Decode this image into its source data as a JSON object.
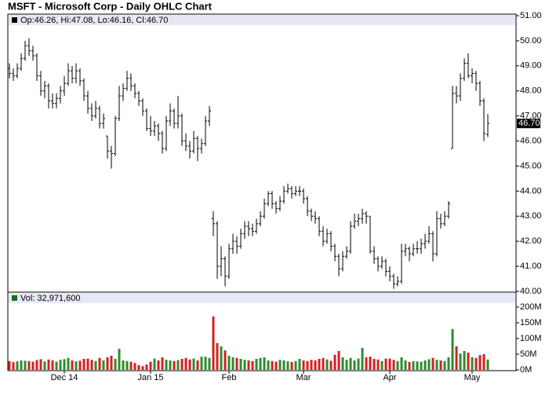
{
  "chart_data": [
    {
      "type": "ohlc",
      "title": "MSFT - Microsoft Corp - Daily OHLC Chart",
      "header": "Op:46.26, Hi:47.08, Lo:46.16, Cl:46.70",
      "color": "#000000",
      "open": [
        48.9,
        48.7,
        48.6,
        48.9,
        49.3,
        49.8,
        49.6,
        49.4,
        48.6,
        48.0,
        48.2,
        47.6,
        47.5,
        47.7,
        48.0,
        48.3,
        48.8,
        48.5,
        48.8,
        48.4,
        47.8,
        47.3,
        47.0,
        47.3,
        46.7,
        46.2,
        45.6,
        45.5,
        46.9,
        47.8,
        48.1,
        48.5,
        48.2,
        47.9,
        47.6,
        47.2,
        46.5,
        46.4,
        46.6,
        46.3,
        45.7,
        46.8,
        47.2,
        46.7,
        47.0,
        46.0,
        45.8,
        45.6,
        46.1,
        45.7,
        45.9,
        46.8,
        42.9,
        42.7,
        41.0,
        41.3,
        40.6,
        41.7,
        42.0,
        41.8,
        42.3,
        42.6,
        42.5,
        42.4,
        42.7,
        43.0,
        43.5,
        43.9,
        43.5,
        43.3,
        43.6,
        44.0,
        44.1,
        43.9,
        44.0,
        44.0,
        43.7,
        43.2,
        43.0,
        42.9,
        42.4,
        42.0,
        42.3,
        41.8,
        41.4,
        40.9,
        41.4,
        41.6,
        42.6,
        42.8,
        42.9,
        43.1,
        43.0,
        41.6,
        41.3,
        41.0,
        41.2,
        40.8,
        40.6,
        40.3,
        40.4,
        41.6,
        41.7,
        41.5,
        41.7,
        41.7,
        41.9,
        42.0,
        42.3,
        41.5,
        42.9,
        42.7,
        43.0,
        45.7,
        47.9,
        47.8,
        48.5,
        49.1,
        48.6,
        48.7,
        48.3,
        47.6,
        46.26
      ],
      "high": [
        49.1,
        48.9,
        49.1,
        49.5,
        50.0,
        50.1,
        49.8,
        49.5,
        48.8,
        48.4,
        48.3,
        47.9,
        47.9,
        48.2,
        48.6,
        49.1,
        49.0,
        49.1,
        48.9,
        48.5,
        48.0,
        47.5,
        47.6,
        47.4,
        47.1,
        46.2,
        45.8,
        47.0,
        48.2,
        48.3,
        48.8,
        48.7,
        48.3,
        48.0,
        47.7,
        47.3,
        47.0,
        46.8,
        46.7,
        46.4,
        47.0,
        47.5,
        47.3,
        47.8,
        47.1,
        46.3,
        46.0,
        46.4,
        46.2,
        46.1,
        47.0,
        47.4,
        43.2,
        42.8,
        41.8,
        41.4,
        41.9,
        42.3,
        42.2,
        42.5,
        42.8,
        42.8,
        42.7,
        42.9,
        43.2,
        43.7,
        44.0,
        44.0,
        43.6,
        43.8,
        44.2,
        44.3,
        44.2,
        44.2,
        44.2,
        44.1,
        43.8,
        43.3,
        43.2,
        43.0,
        42.6,
        42.5,
        42.4,
        41.9,
        41.5,
        41.6,
        41.8,
        42.8,
        43.1,
        43.1,
        43.3,
        43.2,
        43.0,
        41.8,
        41.4,
        41.4,
        41.3,
        41.0,
        40.7,
        40.6,
        41.9,
        41.9,
        41.8,
        41.9,
        42.0,
        42.1,
        42.3,
        42.6,
        42.4,
        43.2,
        43.1,
        43.2,
        43.6,
        48.2,
        48.2,
        48.7,
        49.3,
        49.5,
        48.9,
        48.8,
        48.4,
        47.7,
        47.08
      ],
      "low": [
        48.5,
        48.4,
        48.5,
        48.8,
        49.2,
        49.4,
        49.2,
        48.4,
        47.8,
        47.7,
        47.3,
        47.3,
        47.3,
        47.5,
        47.8,
        48.2,
        48.3,
        48.3,
        48.2,
        47.6,
        47.1,
        46.8,
        46.9,
        46.5,
        46.5,
        45.3,
        44.9,
        45.4,
        46.8,
        47.6,
        48.0,
        48.0,
        47.7,
        47.4,
        47.0,
        46.4,
        46.2,
        46.2,
        46.0,
        45.5,
        45.6,
        46.6,
        46.5,
        46.5,
        45.8,
        45.6,
        45.3,
        45.5,
        45.2,
        45.5,
        45.8,
        46.6,
        42.2,
        40.5,
        40.6,
        40.2,
        40.5,
        41.5,
        41.5,
        41.7,
        42.1,
        42.2,
        42.2,
        42.3,
        42.6,
        42.9,
        43.4,
        43.3,
        43.1,
        43.2,
        43.5,
        43.9,
        43.7,
        43.8,
        43.8,
        43.5,
        43.0,
        42.8,
        42.7,
        42.2,
        41.8,
        41.9,
        41.6,
        41.2,
        40.6,
        40.8,
        41.3,
        41.5,
        42.5,
        42.6,
        42.7,
        42.7,
        41.5,
        41.1,
        40.8,
        40.9,
        40.6,
        40.4,
        40.1,
        40.2,
        40.3,
        41.4,
        41.2,
        41.4,
        41.5,
        41.5,
        41.7,
        41.9,
        41.2,
        41.4,
        42.5,
        42.6,
        42.9,
        45.7,
        47.5,
        47.6,
        48.4,
        48.5,
        48.3,
        48.0,
        47.4,
        46.0,
        46.16
      ],
      "close": [
        48.7,
        48.6,
        48.9,
        49.3,
        49.8,
        49.6,
        49.4,
        48.6,
        48.0,
        48.2,
        47.6,
        47.5,
        47.7,
        48.0,
        48.3,
        48.8,
        48.5,
        48.8,
        48.4,
        47.8,
        47.3,
        47.0,
        47.3,
        46.7,
        46.9,
        45.6,
        45.5,
        46.9,
        47.8,
        48.1,
        48.5,
        48.2,
        47.9,
        47.6,
        47.2,
        46.5,
        46.4,
        46.6,
        46.3,
        45.7,
        46.8,
        47.2,
        46.7,
        47.0,
        46.0,
        45.8,
        45.6,
        46.1,
        45.7,
        45.9,
        46.8,
        47.2,
        42.7,
        41.0,
        41.3,
        40.6,
        41.7,
        42.0,
        41.8,
        42.3,
        42.6,
        42.5,
        42.4,
        42.7,
        43.0,
        43.5,
        43.9,
        43.5,
        43.3,
        43.6,
        44.0,
        44.1,
        43.9,
        44.0,
        44.0,
        43.7,
        43.2,
        43.0,
        42.9,
        42.4,
        42.0,
        42.3,
        41.8,
        41.4,
        40.9,
        41.4,
        41.6,
        42.6,
        42.8,
        42.9,
        43.1,
        43.0,
        41.6,
        41.3,
        41.0,
        41.2,
        40.8,
        40.6,
        40.3,
        40.4,
        41.6,
        41.7,
        41.5,
        41.7,
        41.7,
        41.9,
        42.0,
        42.3,
        41.5,
        42.9,
        42.7,
        43.0,
        43.5,
        47.9,
        47.8,
        48.5,
        49.1,
        48.6,
        48.7,
        48.3,
        47.6,
        46.3,
        46.7
      ],
      "ylim": [
        40,
        51
      ],
      "yticks": [
        {
          "value": 40,
          "label": "40.00"
        },
        {
          "value": 41,
          "label": "41.00"
        },
        {
          "value": 42,
          "label": "42.00"
        },
        {
          "value": 43,
          "label": "43.00"
        },
        {
          "value": 44,
          "label": "44.00"
        },
        {
          "value": 45,
          "label": "45.00"
        },
        {
          "value": 46,
          "label": "46.00"
        },
        {
          "value": 47,
          "label": "47.00"
        },
        {
          "value": 48,
          "label": "48.00"
        },
        {
          "value": 49,
          "label": "49.00"
        },
        {
          "value": 50,
          "label": "50.00"
        },
        {
          "value": 51,
          "label": "51.00"
        }
      ],
      "last_price": {
        "value": 46.7,
        "label": "46.70"
      }
    },
    {
      "type": "bar",
      "header": "Vol: 32,971,600",
      "up_color": "#2e8b2e",
      "down_color": "#d42020",
      "categories": [
        null,
        null,
        null,
        null,
        null,
        null,
        null,
        null,
        null,
        null,
        null,
        null,
        null,
        null,
        "Dec 14",
        null,
        null,
        null,
        null,
        null,
        null,
        null,
        null,
        null,
        null,
        null,
        null,
        null,
        null,
        null,
        null,
        null,
        null,
        null,
        null,
        null,
        "Jan 15",
        null,
        null,
        null,
        null,
        null,
        null,
        null,
        null,
        null,
        null,
        null,
        null,
        null,
        null,
        null,
        null,
        null,
        null,
        null,
        "Feb",
        null,
        null,
        null,
        null,
        null,
        null,
        null,
        null,
        null,
        null,
        null,
        null,
        null,
        null,
        null,
        null,
        null,
        null,
        "Mar",
        null,
        null,
        null,
        null,
        null,
        null,
        null,
        null,
        null,
        null,
        null,
        null,
        null,
        null,
        null,
        null,
        null,
        null,
        null,
        null,
        null,
        "Apr",
        null,
        null,
        null,
        null,
        null,
        null,
        null,
        null,
        null,
        null,
        null,
        null,
        null,
        null,
        null,
        null,
        null,
        null,
        null,
        null,
        "May",
        null,
        null,
        null,
        null
      ],
      "values": [
        28,
        25,
        27,
        30,
        29,
        28,
        26,
        31,
        34,
        27,
        33,
        30,
        26,
        32,
        34,
        38,
        30,
        27,
        29,
        35,
        36,
        32,
        28,
        38,
        30,
        40,
        45,
        35,
        67,
        30,
        28,
        26,
        22,
        15,
        12,
        17,
        26,
        36,
        30,
        40,
        32,
        30,
        28,
        31,
        35,
        38,
        33,
        36,
        30,
        42,
        42,
        38,
        170,
        85,
        75,
        62,
        45,
        40,
        38,
        35,
        32,
        30,
        28,
        35,
        38,
        40,
        30,
        28,
        26,
        32,
        30,
        27,
        25,
        28,
        35,
        30,
        28,
        32,
        30,
        35,
        38,
        33,
        29,
        48,
        60,
        40,
        32,
        38,
        30,
        36,
        70,
        40,
        42,
        35,
        33,
        28,
        36,
        36,
        32,
        28,
        40,
        30,
        25,
        28,
        27,
        26,
        30,
        34,
        38,
        32,
        30,
        28,
        40,
        130,
        75,
        52,
        60,
        55,
        40,
        38,
        47,
        50,
        32.9716
      ],
      "ylim": [
        0,
        245
      ],
      "yticks": [
        {
          "value": 0,
          "label": "0M"
        },
        {
          "value": 50,
          "label": "50M"
        },
        {
          "value": 100,
          "label": "100M"
        },
        {
          "value": 150,
          "label": "150M"
        },
        {
          "value": 200,
          "label": "200M"
        }
      ]
    }
  ]
}
